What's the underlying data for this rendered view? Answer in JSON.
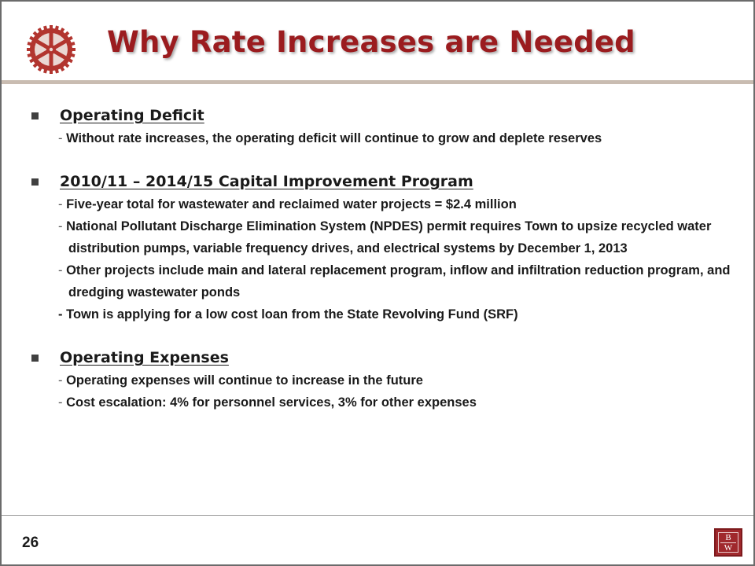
{
  "slide": {
    "title": "Why Rate Increases are Needed",
    "page_number": "26",
    "logo_letters": [
      "B",
      "W"
    ],
    "colors": {
      "title": "#9b1c1f",
      "gear": "#b2352f",
      "logo": "#a0282c",
      "rule": "#c9bcb1"
    }
  },
  "sections": [
    {
      "title": "Operating Deficit",
      "items": [
        {
          "dash": "-",
          "text": "Without rate increases, the operating deficit will continue to grow and deplete reserves"
        }
      ]
    },
    {
      "title": "2010/11 – 2014/15 Capital Improvement Program",
      "items": [
        {
          "dash": "-",
          "text": "Five-year total for wastewater and reclaimed water projects = $2.4 million"
        },
        {
          "dash": "-",
          "text": "National Pollutant Discharge Elimination System (NPDES) permit requires Town to upsize recycled water distribution pumps, variable frequency drives, and electrical systems by December 1, 2013"
        },
        {
          "dash": "-",
          "text": "Other projects include main and lateral replacement program, inflow and infiltration reduction program, and dredging wastewater ponds"
        },
        {
          "dash": "-",
          "text": "Town is applying for a low cost loan from the State Revolving Fund (SRF)"
        }
      ]
    },
    {
      "title": "Operating Expenses",
      "items": [
        {
          "dash": "-",
          "text": "Operating expenses will continue to increase in the future"
        },
        {
          "dash": "-",
          "text": "Cost escalation: 4% for personnel services, 3% for other expenses"
        }
      ]
    }
  ]
}
